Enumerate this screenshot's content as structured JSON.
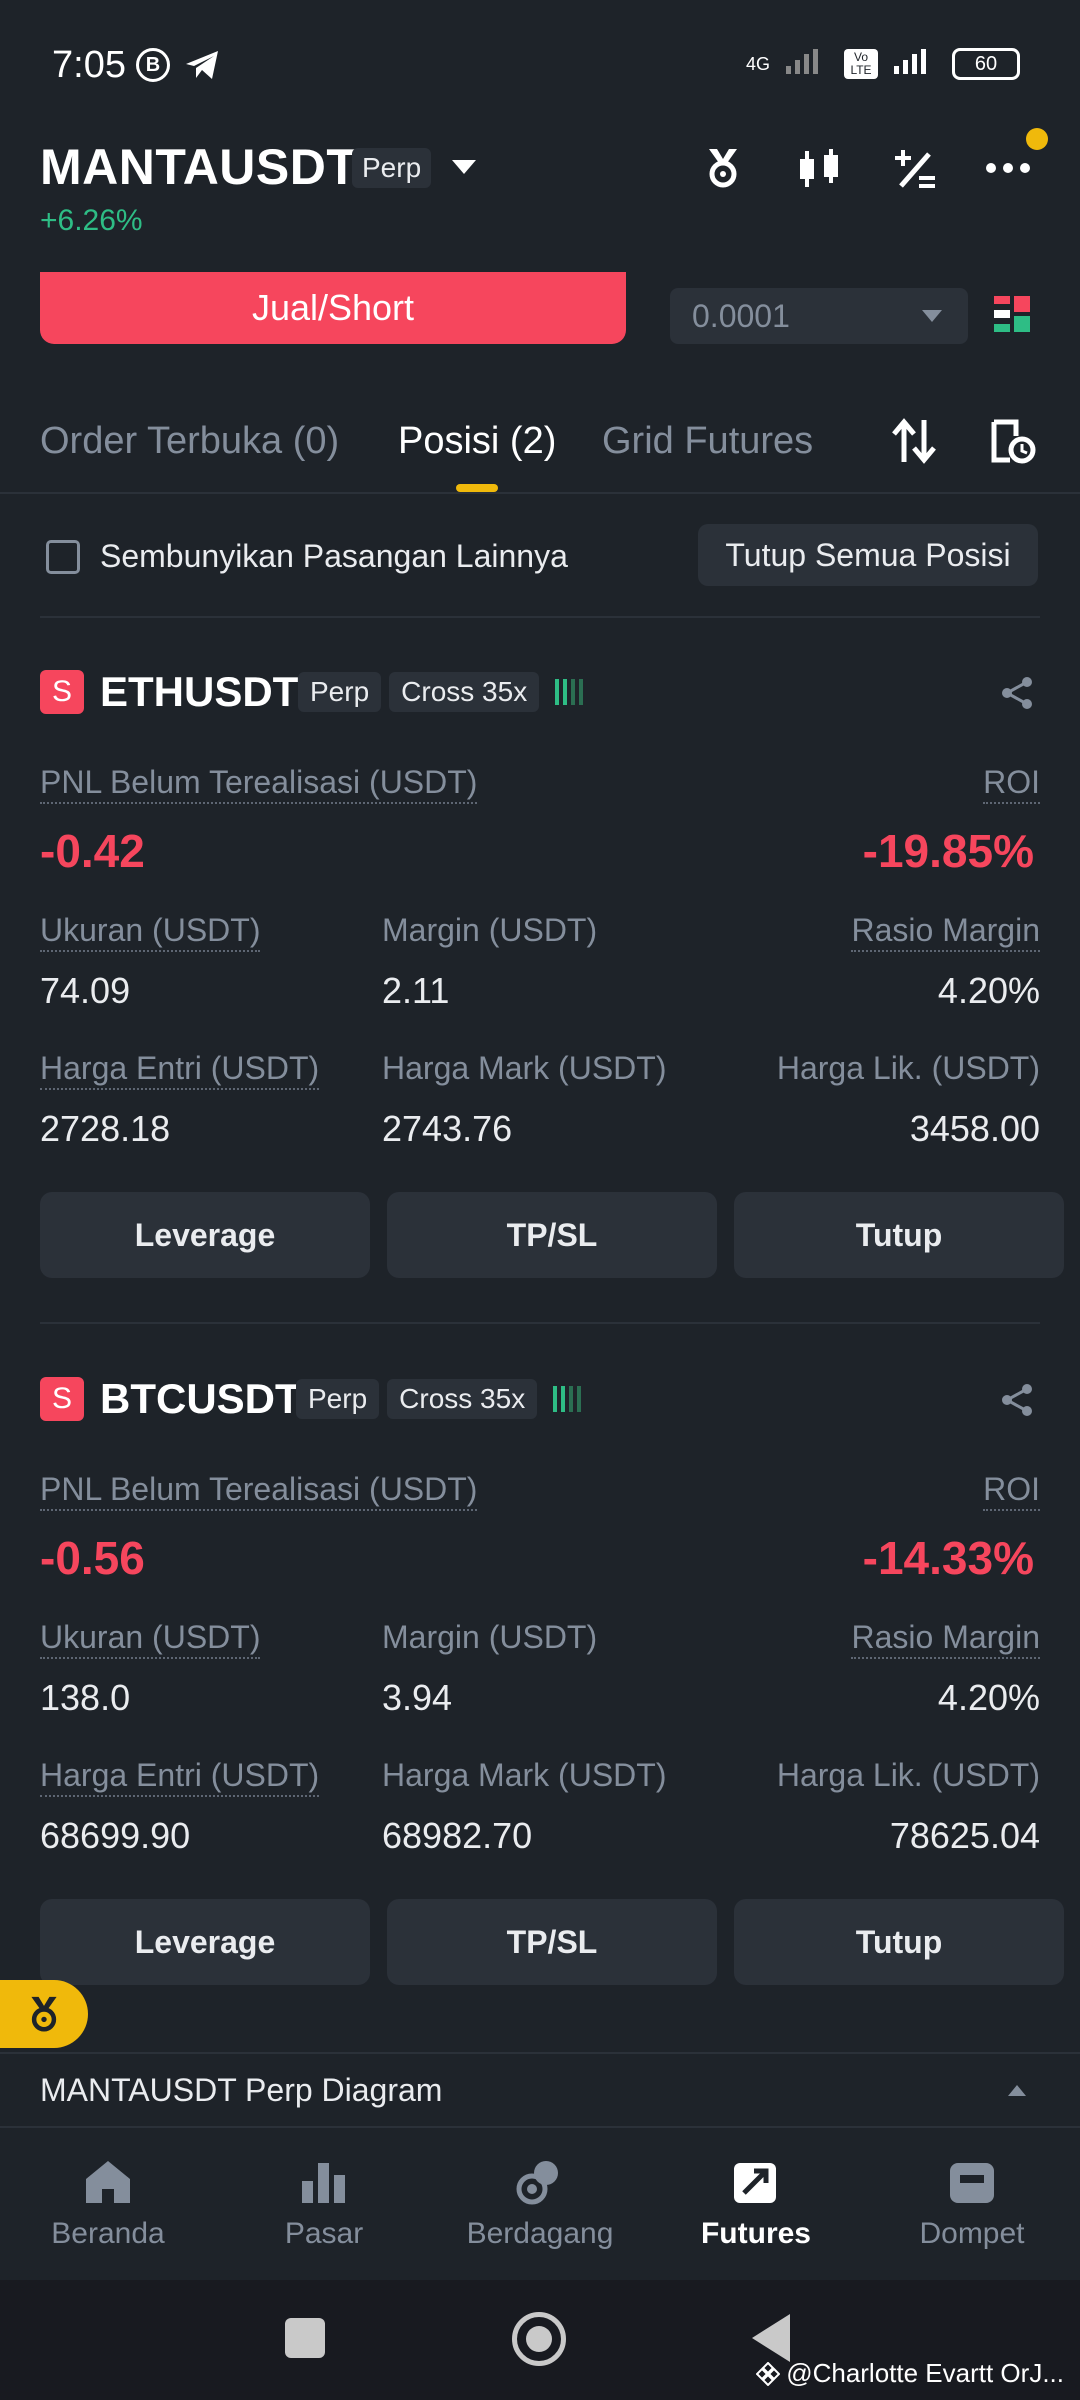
{
  "status_bar": {
    "time": "7:05",
    "network": "4G",
    "volte": "Vo LTE",
    "battery": "60"
  },
  "header": {
    "pair": "MANTAUSDT",
    "contract": "Perp",
    "change": "+6.26%"
  },
  "order": {
    "short_label": "Jual/Short",
    "quantity": "0.0001"
  },
  "tabs": {
    "open_orders": "Order Terbuka (0)",
    "positions": "Posisi (2)",
    "grid": "Grid Futures"
  },
  "filter": {
    "hide_label": "Sembunyikan Pasangan Lainnya",
    "close_all": "Tutup Semua Posisi"
  },
  "positions": [
    {
      "side": "S",
      "symbol": "ETHUSDT",
      "contract": "Perp",
      "margin_mode": "Cross 35x",
      "pnl_label": "PNL Belum Terealisasi (USDT)",
      "pnl": "-0.42",
      "roi_label": "ROI",
      "roi": "-19.85%",
      "size_label": "Ukuran (USDT)",
      "size": "74.09",
      "margin_label": "Margin (USDT)",
      "margin": "2.11",
      "ratio_label": "Rasio Margin",
      "ratio": "4.20%",
      "entry_label": "Harga Entri (USDT)",
      "entry": "2728.18",
      "mark_label": "Harga Mark (USDT)",
      "mark": "2743.76",
      "liq_label": "Harga Lik. (USDT)",
      "liq": "3458.00",
      "btn_leverage": "Leverage",
      "btn_tpsl": "TP/SL",
      "btn_close": "Tutup"
    },
    {
      "side": "S",
      "symbol": "BTCUSDT",
      "contract": "Perp",
      "margin_mode": "Cross 35x",
      "pnl_label": "PNL Belum Terealisasi (USDT)",
      "pnl": "-0.56",
      "roi_label": "ROI",
      "roi": "-14.33%",
      "size_label": "Ukuran (USDT)",
      "size": "138.0",
      "margin_label": "Margin (USDT)",
      "margin": "3.94",
      "ratio_label": "Rasio Margin",
      "ratio": "4.20%",
      "entry_label": "Harga Entri (USDT)",
      "entry": "68699.90",
      "mark_label": "Harga Mark (USDT)",
      "mark": "68982.70",
      "liq_label": "Harga Lik. (USDT)",
      "liq": "78625.04",
      "btn_leverage": "Leverage",
      "btn_tpsl": "TP/SL",
      "btn_close": "Tutup"
    }
  ],
  "diagram_bar": {
    "label": "MANTAUSDT Perp Diagram"
  },
  "nav": [
    {
      "label": "Beranda",
      "icon": "home-icon"
    },
    {
      "label": "Pasar",
      "icon": "markets-icon"
    },
    {
      "label": "Berdagang",
      "icon": "trade-icon"
    },
    {
      "label": "Futures",
      "icon": "futures-icon"
    },
    {
      "label": "Dompet",
      "icon": "wallet-icon"
    }
  ],
  "watermark": "@Charlotte Evartt OrJ...",
  "colors": {
    "background": "#1e2329",
    "panel": "#2b3139",
    "red": "#f6465d",
    "green": "#2ebd85",
    "accent": "#f0b90b",
    "muted": "#848e9c"
  }
}
